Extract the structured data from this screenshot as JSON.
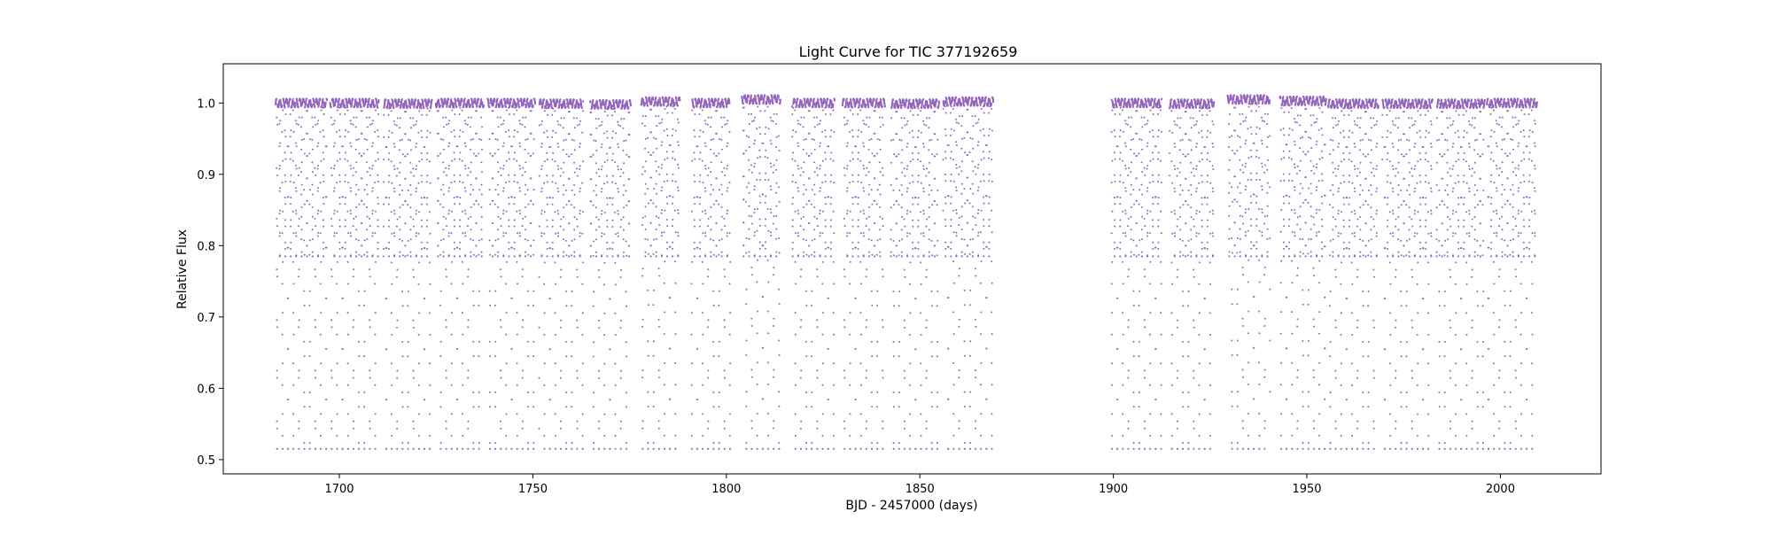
{
  "chart_data": {
    "type": "scatter",
    "title": "Light Curve for TIC 377192659",
    "xlabel": "BJD - 2457000 (days)",
    "ylabel": "Relative Flux",
    "xlim": [
      1670,
      2026
    ],
    "ylim": [
      0.48,
      1.055
    ],
    "xticks": [
      1700,
      1750,
      1800,
      1850,
      1900,
      1950,
      2000
    ],
    "yticks": [
      0.5,
      0.6,
      0.7,
      0.8,
      0.9,
      1.0
    ],
    "xtick_labels": [
      "1700",
      "1750",
      "1800",
      "1850",
      "1900",
      "1950",
      "2000"
    ],
    "ytick_labels": [
      "0.5",
      "0.6",
      "0.7",
      "0.8",
      "0.9",
      "1.0"
    ],
    "grid": false,
    "marker_color": "#9467bd",
    "series": [
      {
        "description": "TESS photometry, orbit segments (BJD-2457000 start/end, baseline flux); eclipse period ~1.41 d, primary depth to ~0.515, secondary ~0.785",
        "period_days": 1.41,
        "primary_min_flux": 0.515,
        "secondary_min_flux": 0.785,
        "segments": [
          {
            "x": [
              1683.5,
              1696.8
            ],
            "baseline": 1.0
          },
          {
            "x": [
              1697.6,
              1710.2
            ],
            "baseline": 1.0
          },
          {
            "x": [
              1711.4,
              1723.9
            ],
            "baseline": 0.999
          },
          {
            "x": [
              1724.9,
              1737.3
            ],
            "baseline": 1.0
          },
          {
            "x": [
              1738.3,
              1750.6
            ],
            "baseline": 1.0
          },
          {
            "x": [
              1751.6,
              1763.0
            ],
            "baseline": 0.999
          },
          {
            "x": [
              1764.8,
              1775.3
            ],
            "baseline": 0.998
          },
          {
            "x": [
              1778.0,
              1788.0
            ],
            "baseline": 1.002
          },
          {
            "x": [
              1791.0,
              1801.0
            ],
            "baseline": 1.0
          },
          {
            "x": [
              1804.0,
              1814.0
            ],
            "baseline": 1.005
          },
          {
            "x": [
              1817.0,
              1828.0
            ],
            "baseline": 1.0
          },
          {
            "x": [
              1830.0,
              1841.0
            ],
            "baseline": 1.0
          },
          {
            "x": [
              1842.5,
              1855.0
            ],
            "baseline": 0.999
          },
          {
            "x": [
              1856.0,
              1869.0
            ],
            "baseline": 1.002
          },
          {
            "x": [
              1899.5,
              1912.5
            ],
            "baseline": 1.0
          },
          {
            "x": [
              1914.5,
              1926.0
            ],
            "baseline": 0.999
          },
          {
            "x": [
              1929.5,
              1940.5
            ],
            "baseline": 1.005
          },
          {
            "x": [
              1943.0,
              1955.0
            ],
            "baseline": 1.003
          },
          {
            "x": [
              1955.5,
              1968.5
            ],
            "baseline": 0.999
          },
          {
            "x": [
              1969.5,
              1982.5
            ],
            "baseline": 0.999
          },
          {
            "x": [
              1983.5,
              1996.0
            ],
            "baseline": 0.999
          },
          {
            "x": [
              1996.5,
              2009.5
            ],
            "baseline": 1.0
          }
        ]
      }
    ]
  }
}
